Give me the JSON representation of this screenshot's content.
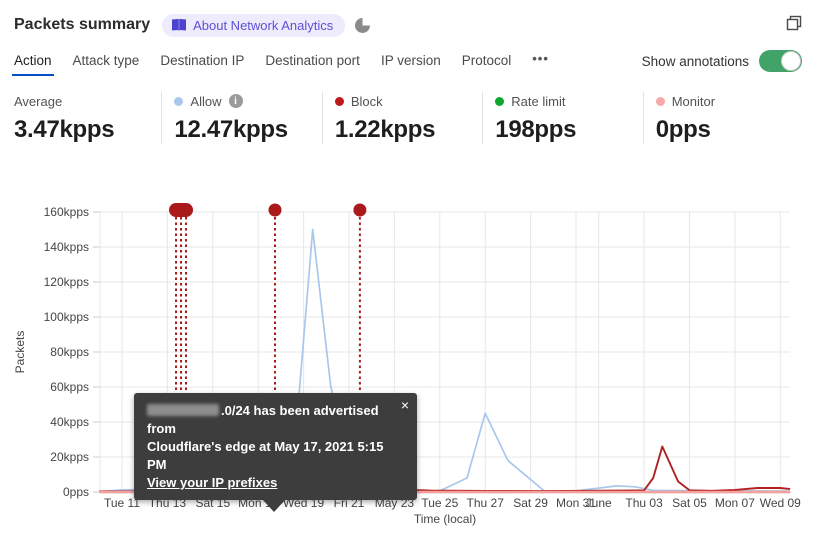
{
  "header": {
    "title": "Packets summary",
    "badge_label": "About Network Analytics"
  },
  "tabs": {
    "items": [
      "Action",
      "Attack type",
      "Destination IP",
      "Destination port",
      "IP version",
      "Protocol"
    ],
    "active": "Action",
    "more_label": "•••",
    "annotations_label": "Show annotations",
    "annotations_on": true
  },
  "stats": [
    {
      "label": "Average",
      "value": "3.47kpps",
      "dot": null,
      "info": false
    },
    {
      "label": "Allow",
      "value": "12.47kpps",
      "dot": "#a9c7eb",
      "info": true
    },
    {
      "label": "Block",
      "value": "1.22kpps",
      "dot": "#bf1818",
      "info": false
    },
    {
      "label": "Rate limit",
      "value": "198pps",
      "dot": "#0da62c",
      "info": false
    },
    {
      "label": "Monitor",
      "value": "0pps",
      "dot": "#f8a8a8",
      "info": false
    }
  ],
  "tooltip": {
    "close": "×",
    "line1_suffix": ".0/24 has been advertised from",
    "line2": "Cloudflare's edge at May 17, 2021 5:15 PM",
    "link": "View your IP prefixes"
  },
  "chart_data": {
    "type": "line",
    "xlabel": "Time (local)",
    "ylabel": "Packets",
    "unit": "kpps",
    "ylim": [
      0,
      160
    ],
    "grid": true,
    "y_ticks": [
      {
        "label": "0pps",
        "v": 0
      },
      {
        "label": "20kpps",
        "v": 20
      },
      {
        "label": "40kpps",
        "v": 40
      },
      {
        "label": "60kpps",
        "v": 60
      },
      {
        "label": "80kpps",
        "v": 80
      },
      {
        "label": "100kpps",
        "v": 100
      },
      {
        "label": "120kpps",
        "v": 120
      },
      {
        "label": "140kpps",
        "v": 140
      },
      {
        "label": "160kpps",
        "v": 160
      }
    ],
    "x_ticks": [
      {
        "label": "Tue 11",
        "d": 0
      },
      {
        "label": "Thu 13",
        "d": 2
      },
      {
        "label": "Sat 15",
        "d": 4
      },
      {
        "label": "Mon 17",
        "d": 6
      },
      {
        "label": "Wed 19",
        "d": 8
      },
      {
        "label": "Fri 21",
        "d": 10
      },
      {
        "label": "May 23",
        "d": 12
      },
      {
        "label": "Tue 25",
        "d": 14
      },
      {
        "label": "Thu 27",
        "d": 16
      },
      {
        "label": "Sat 29",
        "d": 18
      },
      {
        "label": "Mon 31",
        "d": 20
      },
      {
        "label": "June",
        "d": 21
      },
      {
        "label": "Thu 03",
        "d": 23
      },
      {
        "label": "Sat 05",
        "d": 25
      },
      {
        "label": "Mon 07",
        "d": 27
      },
      {
        "label": "Wed 09",
        "d": 29
      }
    ],
    "series": [
      {
        "name": "Allow",
        "color": "#a9c7eb",
        "width": 1.7,
        "points": [
          [
            -1,
            0.3
          ],
          [
            0,
            1.2
          ],
          [
            2,
            1.8
          ],
          [
            4,
            1.8
          ],
          [
            5.2,
            1
          ],
          [
            6,
            0.4
          ],
          [
            6.4,
            1
          ],
          [
            6.8,
            3
          ],
          [
            7.7,
            40
          ],
          [
            8.4,
            150
          ],
          [
            9.2,
            60
          ],
          [
            10.1,
            18
          ],
          [
            10.9,
            14
          ],
          [
            11.5,
            0.6
          ],
          [
            14,
            0.6
          ],
          [
            15.2,
            8
          ],
          [
            16,
            45
          ],
          [
            17,
            18
          ],
          [
            18.6,
            0.6
          ],
          [
            20,
            0.6
          ],
          [
            21.8,
            3.5
          ],
          [
            22.6,
            3
          ],
          [
            23.4,
            1
          ],
          [
            26,
            0.6
          ],
          [
            29.4,
            0.5
          ]
        ]
      },
      {
        "name": "Rate limit",
        "color": "#3c9e40",
        "width": 2.2,
        "points": [
          [
            -1,
            0
          ],
          [
            5.8,
            0
          ],
          [
            6.2,
            0.4
          ],
          [
            6.8,
            2.5
          ],
          [
            7.4,
            5.5
          ],
          [
            8,
            2.5
          ],
          [
            8.6,
            0.8
          ],
          [
            9.2,
            0
          ],
          [
            29.4,
            0
          ]
        ]
      },
      {
        "name": "Block",
        "color": "#b32020",
        "width": 1.9,
        "points": [
          [
            -1,
            0.4
          ],
          [
            2,
            0.4
          ],
          [
            4,
            0.3
          ],
          [
            6,
            0.5
          ],
          [
            6.4,
            2
          ],
          [
            7.4,
            4.5
          ],
          [
            8.4,
            1
          ],
          [
            10,
            0.6
          ],
          [
            12,
            1
          ],
          [
            12.8,
            1.2
          ],
          [
            13.6,
            0.8
          ],
          [
            16,
            0.6
          ],
          [
            18.8,
            0.5
          ],
          [
            22,
            0.8
          ],
          [
            23,
            1
          ],
          [
            23.4,
            8
          ],
          [
            23.8,
            26
          ],
          [
            24.5,
            6
          ],
          [
            25,
            1
          ],
          [
            26,
            0.7
          ],
          [
            27,
            1.2
          ],
          [
            28,
            2.3
          ],
          [
            29,
            2.3
          ],
          [
            29.4,
            1.8
          ]
        ]
      },
      {
        "name": "Monitor",
        "color": "#f59f9f",
        "width": 2.4,
        "points": [
          [
            -1,
            0
          ],
          [
            29.4,
            0
          ]
        ]
      }
    ],
    "annotations": [
      {
        "marker": "pill",
        "color": "#ab1a1a",
        "days": [
          2.38,
          2.6,
          2.82
        ]
      },
      {
        "marker": "dot",
        "color": "#ab1a1a",
        "days": [
          6.74
        ]
      },
      {
        "marker": "dot",
        "color": "#ab1a1a",
        "days": [
          10.48
        ]
      }
    ]
  }
}
